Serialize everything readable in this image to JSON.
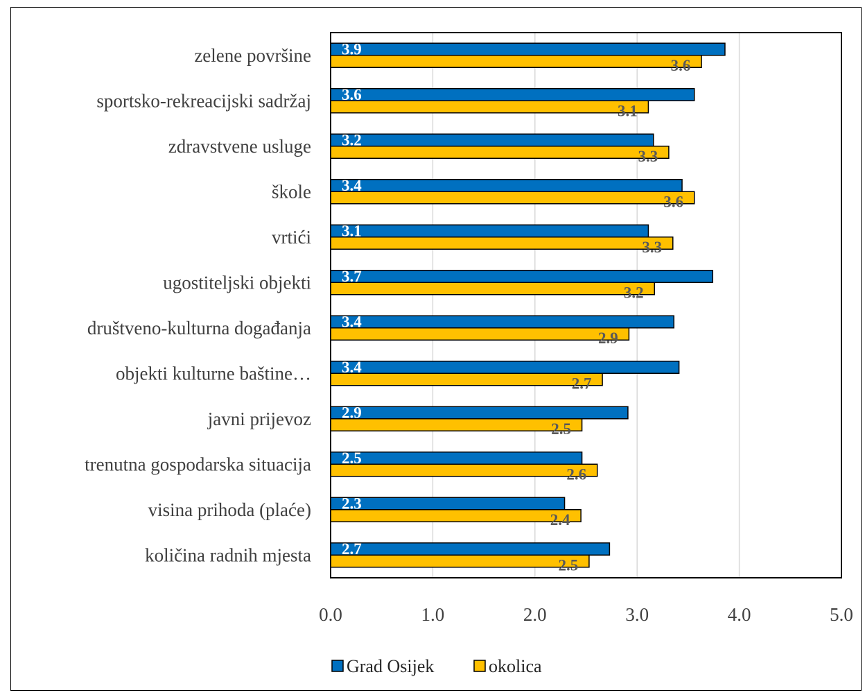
{
  "chart_data": {
    "type": "bar",
    "orientation": "horizontal",
    "categories": [
      "zelene površine",
      "sportsko-rekreacijski sadržaj",
      "zdravstvene usluge",
      "škole",
      "vrtići",
      "ugostiteljski objekti",
      "društveno-kulturna događanja",
      "objekti kulturne baštine…",
      "javni prijevoz",
      "trenutna gospodarska situacija",
      "visina prihoda (plaće)",
      "količina radnih mjesta"
    ],
    "series": [
      {
        "name": "Grad Osijek",
        "color": "#0070C0",
        "values": [
          3.86,
          3.56,
          3.16,
          3.44,
          3.11,
          3.74,
          3.36,
          3.41,
          2.91,
          2.46,
          2.29,
          2.73
        ],
        "labels": [
          "3.9",
          "3.6",
          "3.2",
          "3.4",
          "3.1",
          "3.7",
          "3.4",
          "3.4",
          "2.9",
          "2.5",
          "2.3",
          "2.7"
        ]
      },
      {
        "name": "okolica",
        "color": "#FFC000",
        "values": [
          3.63,
          3.11,
          3.31,
          3.56,
          3.35,
          3.17,
          2.92,
          2.66,
          2.46,
          2.61,
          2.45,
          2.53
        ],
        "labels": [
          "3.6",
          "3.1",
          "3.3",
          "3.6",
          "3.3",
          "3.2",
          "2.9",
          "2.7",
          "2.5",
          "2.6",
          "2.4",
          "2.5"
        ]
      }
    ],
    "xlim": [
      0,
      5
    ],
    "xticks": [
      "0.0",
      "1.0",
      "2.0",
      "3.0",
      "4.0",
      "5.0"
    ],
    "grid": "vertical",
    "legend_position": "bottom",
    "title": "",
    "xlabel": "",
    "ylabel": ""
  }
}
